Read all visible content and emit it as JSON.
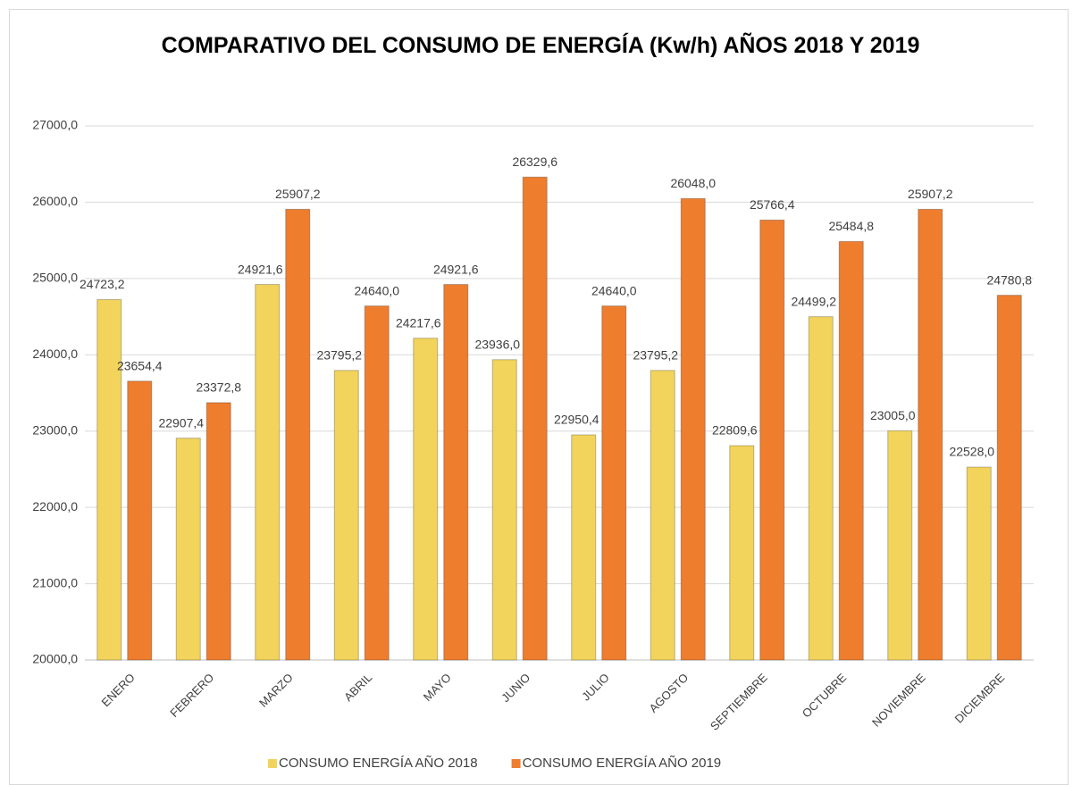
{
  "chart_data": {
    "type": "bar",
    "title": "COMPARATIVO DEL CONSUMO DE ENERGÍA (Kw/h) AÑOS 2018 Y 2019",
    "categories": [
      "ENERO",
      "FEBRERO",
      "MARZO",
      "ABRIL",
      "MAYO",
      "JUNIO",
      "JULIO",
      "AGOSTO",
      "SEPTIEMBRE",
      "OCTUBRE",
      "NOVIEMBRE",
      "DICIEMBRE"
    ],
    "series": [
      {
        "name": "CONSUMO ENERGÍA AÑO 2018",
        "color": "#f2d45c",
        "values": [
          24723.2,
          22907.4,
          24921.6,
          23795.2,
          24217.6,
          23936.0,
          22950.4,
          23795.2,
          22809.6,
          24499.2,
          23005.0,
          22528.0
        ],
        "value_labels": [
          "24723,2",
          "22907,4",
          "24921,6",
          "23795,2",
          "24217,6",
          "23936,0",
          "22950,4",
          "23795,2",
          "22809,6",
          "24499,2",
          "23005,0",
          "22528,0"
        ]
      },
      {
        "name": "CONSUMO ENERGÍA AÑO 2019",
        "color": "#ee7d2e",
        "values": [
          23654.4,
          23372.8,
          25907.2,
          24640.0,
          24921.6,
          26329.6,
          24640.0,
          26048.0,
          25766.4,
          25484.8,
          25907.2,
          24780.8
        ],
        "value_labels": [
          "23654,4",
          "23372,8",
          "25907,2",
          "24640,0",
          "24921,6",
          "26329,6",
          "24640,0",
          "26048,0",
          "25766,4",
          "25484,8",
          "25907,2",
          "24780,8"
        ]
      }
    ],
    "ylim": [
      20000,
      27000
    ],
    "yticks": [
      {
        "value": 20000,
        "label": "20000,0"
      },
      {
        "value": 21000,
        "label": "21000,0"
      },
      {
        "value": 22000,
        "label": "22000,0"
      },
      {
        "value": 23000,
        "label": "23000,0"
      },
      {
        "value": 24000,
        "label": "24000,0"
      },
      {
        "value": 25000,
        "label": "25000,0"
      },
      {
        "value": 26000,
        "label": "26000,0"
      },
      {
        "value": 27000,
        "label": "27000,0"
      }
    ],
    "grid": true,
    "legend": "bottom"
  }
}
